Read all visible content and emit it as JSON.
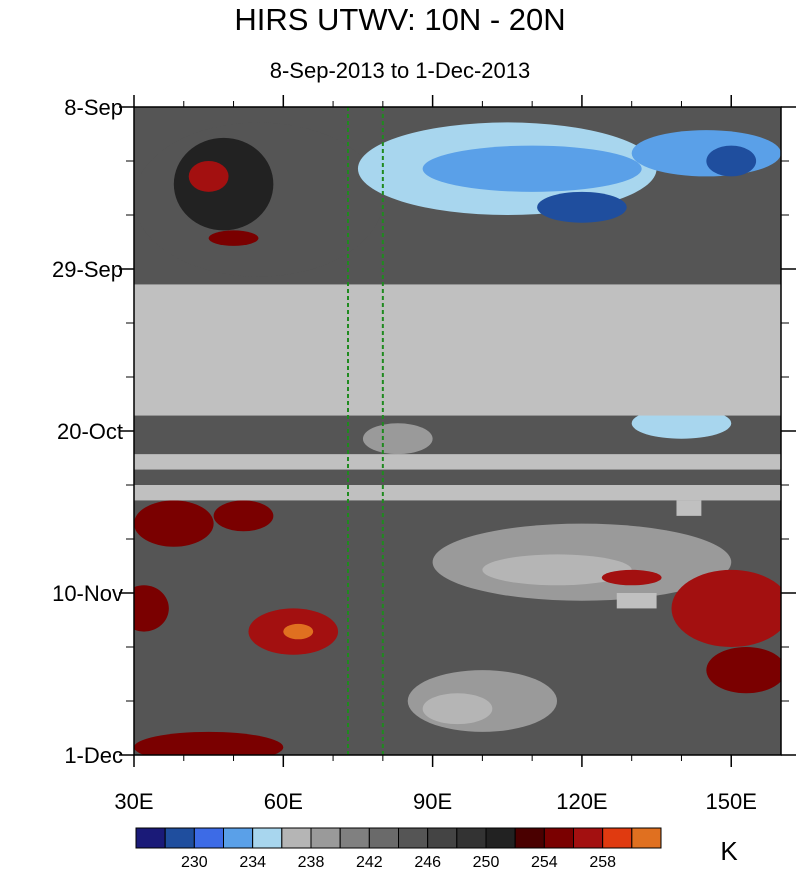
{
  "chart_data": {
    "type": "heatmap",
    "title": "HIRS UTWV: 10N - 20N",
    "subtitle": "8-Sep-2013 to 1-Dec-2013",
    "x_axis": {
      "range": [
        30,
        160
      ],
      "ticks": [
        {
          "value": 30,
          "label": "30E"
        },
        {
          "value": 60,
          "label": "60E"
        },
        {
          "value": 90,
          "label": "90E"
        },
        {
          "value": 120,
          "label": "120E"
        },
        {
          "value": 150,
          "label": "150E"
        }
      ]
    },
    "y_axis": {
      "start": "2013-09-08",
      "end": "2013-12-01",
      "direction": "top-to-bottom",
      "ticks": [
        {
          "date": "2013-09-08",
          "label": "8-Sep"
        },
        {
          "date": "2013-09-29",
          "label": "29-Sep"
        },
        {
          "date": "2013-10-20",
          "label": "20-Oct"
        },
        {
          "date": "2013-11-10",
          "label": "10-Nov"
        },
        {
          "date": "2013-12-01",
          "label": "1-Dec"
        }
      ]
    },
    "reference_lines_longitude": [
      73,
      80
    ],
    "reference_line_color": "#1f8a1f",
    "missing_color": "#c0c0c0",
    "missing_bands": [
      {
        "start": "2013-10-01",
        "end": "2013-10-18"
      },
      {
        "start": "2013-10-23",
        "end": "2013-10-25"
      },
      {
        "start": "2013-10-27",
        "end": "2013-10-29"
      }
    ],
    "missing_patches": [
      {
        "lon_min": 139,
        "lon_max": 144,
        "start": "2013-10-29",
        "end": "2013-10-31"
      },
      {
        "lon_min": 127,
        "lon_max": 135,
        "start": "2013-11-10",
        "end": "2013-11-12"
      }
    ],
    "features": [
      {
        "level": 228,
        "lon": 120,
        "date": "2013-09-21",
        "lon_radius": 9,
        "day_radius": 2
      },
      {
        "level": 229,
        "lon": 150,
        "date": "2013-09-15",
        "lon_radius": 5,
        "day_radius": 2
      },
      {
        "level": 232,
        "lon": 110,
        "date": "2013-09-16",
        "lon_radius": 22,
        "day_radius": 3
      },
      {
        "level": 233,
        "lon": 145,
        "date": "2013-09-14",
        "lon_radius": 15,
        "day_radius": 3
      },
      {
        "level": 234,
        "lon": 140,
        "date": "2013-10-19",
        "lon_radius": 10,
        "day_radius": 2
      },
      {
        "level": 235,
        "lon": 105,
        "date": "2013-09-16",
        "lon_radius": 30,
        "day_radius": 6
      },
      {
        "level": 236,
        "lon": 115,
        "date": "2013-11-07",
        "lon_radius": 15,
        "day_radius": 2
      },
      {
        "level": 236,
        "lon": 95,
        "date": "2013-11-25",
        "lon_radius": 7,
        "day_radius": 2
      },
      {
        "level": 238,
        "lon": 120,
        "date": "2013-11-06",
        "lon_radius": 30,
        "day_radius": 5
      },
      {
        "level": 238,
        "lon": 100,
        "date": "2013-11-24",
        "lon_radius": 15,
        "day_radius": 4
      },
      {
        "level": 238,
        "lon": 83,
        "date": "2013-10-21",
        "lon_radius": 7,
        "day_radius": 2
      },
      {
        "level": 244,
        "lon": 55,
        "date": "2013-09-20",
        "lon_radius": 25,
        "day_radius": 10
      },
      {
        "level": 250,
        "lon": 48,
        "date": "2013-09-18",
        "lon_radius": 10,
        "day_radius": 6
      },
      {
        "level": 256,
        "lon": 45,
        "date": "2013-09-17",
        "lon_radius": 4,
        "day_radius": 2
      },
      {
        "level": 255,
        "lon": 50,
        "date": "2013-09-25",
        "lon_radius": 5,
        "day_radius": 1
      },
      {
        "level": 257,
        "lon": 62,
        "date": "2013-11-15",
        "lon_radius": 9,
        "day_radius": 3
      },
      {
        "level": 260,
        "lon": 63,
        "date": "2013-11-15",
        "lon_radius": 3,
        "day_radius": 1
      },
      {
        "level": 255,
        "lon": 38,
        "date": "2013-11-01",
        "lon_radius": 8,
        "day_radius": 3
      },
      {
        "level": 255,
        "lon": 52,
        "date": "2013-10-31",
        "lon_radius": 6,
        "day_radius": 2
      },
      {
        "level": 255,
        "lon": 32,
        "date": "2013-11-12",
        "lon_radius": 5,
        "day_radius": 3
      },
      {
        "level": 255,
        "lon": 45,
        "date": "2013-11-30",
        "lon_radius": 15,
        "day_radius": 2
      },
      {
        "level": 256,
        "lon": 150,
        "date": "2013-11-12",
        "lon_radius": 12,
        "day_radius": 5
      },
      {
        "level": 256,
        "lon": 130,
        "date": "2013-11-08",
        "lon_radius": 6,
        "day_radius": 1
      },
      {
        "level": 255,
        "lon": 153,
        "date": "2013-11-20",
        "lon_radius": 8,
        "day_radius": 3
      }
    ]
  },
  "colorbar": {
    "unit": "K",
    "colors": [
      "#1a1a78",
      "#1f4e9e",
      "#3d6be6",
      "#5aa0e8",
      "#a8d6ee",
      "#b5b5b5",
      "#9a9a9a",
      "#808080",
      "#6a6a6a",
      "#555555",
      "#444444",
      "#333333",
      "#222222",
      "#4a0000",
      "#7a0000",
      "#a31010",
      "#e03a10",
      "#e07020"
    ],
    "labels": [
      {
        "value": 230,
        "label": "230"
      },
      {
        "value": 234,
        "label": "234"
      },
      {
        "value": 238,
        "label": "238"
      },
      {
        "value": 242,
        "label": "242"
      },
      {
        "value": 246,
        "label": "246"
      },
      {
        "value": 250,
        "label": "250"
      },
      {
        "value": 254,
        "label": "254"
      },
      {
        "value": 258,
        "label": "258"
      }
    ],
    "min_level": 226,
    "step": 2
  }
}
